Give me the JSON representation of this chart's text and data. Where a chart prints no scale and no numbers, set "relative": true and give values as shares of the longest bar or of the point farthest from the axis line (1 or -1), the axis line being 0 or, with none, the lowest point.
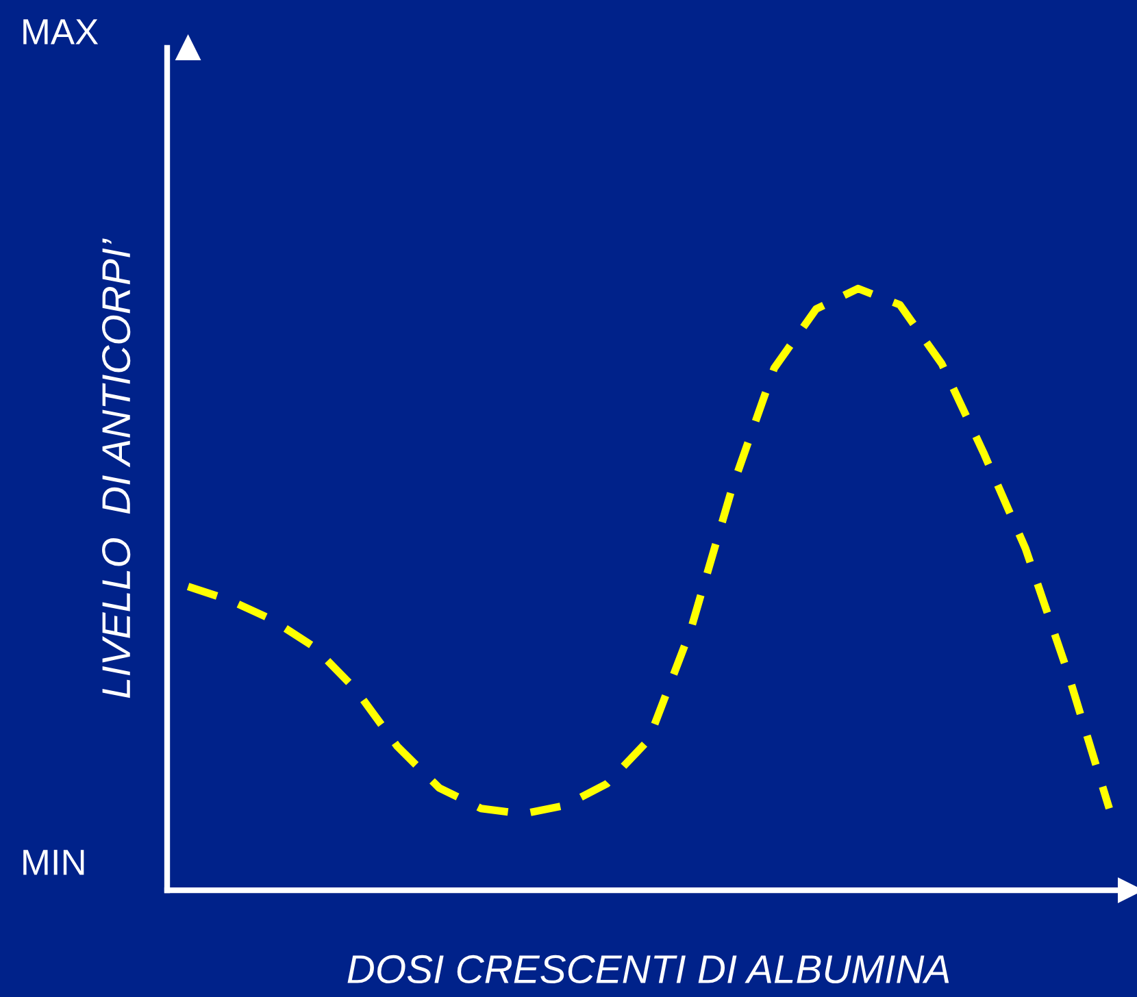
{
  "chart_data": {
    "type": "line",
    "xlabel": "DOSI CRESCENTI DI ALBUMINA",
    "ylabel": "LIVELLO  DI ANTICORPI’",
    "annotations": [
      "MAX",
      "MIN"
    ],
    "relative": true,
    "line_style": "dashed",
    "categories": [
      null,
      null,
      null,
      null,
      null,
      null,
      null,
      null,
      null,
      null,
      null,
      null,
      null,
      null,
      null,
      null,
      null,
      null,
      null,
      null,
      null,
      null,
      null
    ],
    "series": [
      {
        "color": "#ffff00",
        "values": [
          0.505,
          0.482,
          0.45,
          0.405,
          0.334,
          0.239,
          0.17,
          0.136,
          0.127,
          0.141,
          0.177,
          0.25,
          0.432,
          0.67,
          0.868,
          0.966,
          1,
          0.973,
          0.875,
          0.727,
          0.568,
          0.364,
          0.136
        ]
      }
    ]
  }
}
